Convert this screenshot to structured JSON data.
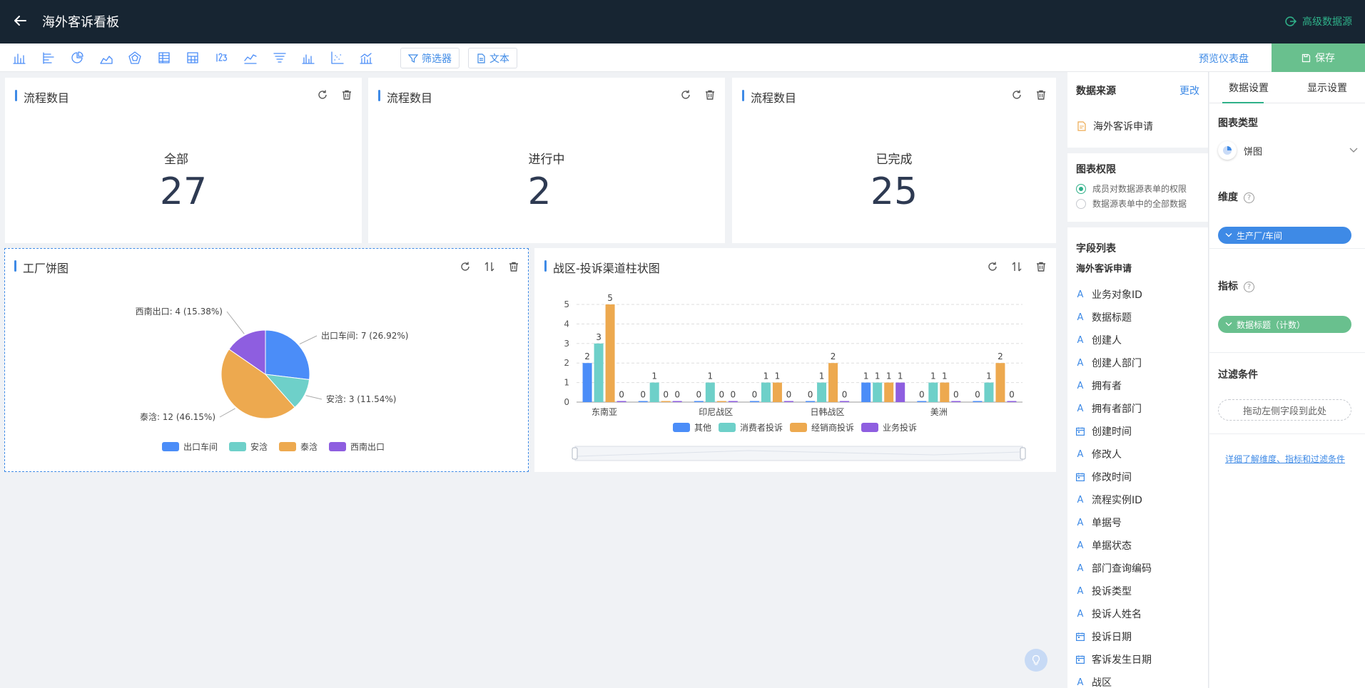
{
  "header": {
    "title": "海外客诉看板",
    "advanced_datasource": "高级数据源"
  },
  "toolbar": {
    "chart_icons": [
      "bar-chart-icon",
      "horizontal-bar-icon",
      "pie-chart-icon",
      "area-chart-icon",
      "radar-chart-icon",
      "list-table-icon",
      "cross-table-icon",
      "number-card-icon",
      "line-chart-icon",
      "funnel-chart-icon",
      "column-chart-icon",
      "scatter-chart-icon",
      "combo-chart-icon"
    ],
    "filter_label": "筛选器",
    "text_label": "文本",
    "preview_label": "预览仪表盘",
    "save_label": "保存"
  },
  "kpis": [
    {
      "title": "流程数目",
      "label": "全部",
      "value": "27"
    },
    {
      "title": "流程数目",
      "label": "进行中",
      "value": "2"
    },
    {
      "title": "流程数目",
      "label": "已完成",
      "value": "25"
    }
  ],
  "pie_card": {
    "title": "工厂饼图"
  },
  "bar_card": {
    "title": "战区-投诉渠道柱状图"
  },
  "colors": {
    "blue": "#4b8df8",
    "teal": "#6ed0c9",
    "orange": "#eda94f",
    "purple": "#8e5ee0",
    "accent": "#3e8ae6",
    "green": "#2fb089"
  },
  "chart_data": [
    {
      "type": "pie",
      "title": "工厂饼图",
      "slices": [
        {
          "name": "出口车间",
          "value": 7,
          "label": "出口车间: 7 (26.92%)"
        },
        {
          "name": "安浛",
          "value": 3,
          "label": "安浛: 3 (11.54%)"
        },
        {
          "name": "泰浛",
          "value": 12,
          "label": "泰浛: 12 (46.15%)"
        },
        {
          "name": "西南出口",
          "value": 4,
          "label": "西南出口: 4 (15.38%)"
        }
      ],
      "legend": [
        "出口车间",
        "安浛",
        "泰浛",
        "西南出口"
      ]
    },
    {
      "type": "bar",
      "title": "战区-投诉渠道柱状图",
      "categories": [
        "东南亚",
        "",
        "印尼战区",
        "",
        "日韩战区",
        "",
        "美洲",
        ""
      ],
      "series": [
        {
          "name": "其他",
          "values": [
            2,
            0,
            0,
            0,
            0,
            1,
            0,
            0
          ]
        },
        {
          "name": "消费者投诉",
          "values": [
            3,
            1,
            1,
            1,
            1,
            1,
            1,
            1
          ]
        },
        {
          "name": "经销商投诉",
          "values": [
            5,
            0,
            0,
            1,
            2,
            1,
            1,
            2
          ]
        },
        {
          "name": "业务投诉",
          "values": [
            0,
            0,
            0,
            0,
            0,
            1,
            0,
            0
          ]
        }
      ],
      "yticks": [
        "0",
        "1",
        "2",
        "3",
        "4",
        "5"
      ],
      "ylim": [
        0,
        5
      ]
    }
  ],
  "datasource": {
    "heading": "数据来源",
    "change_label": "更改",
    "source_name": "海外客诉申请",
    "perm_heading": "图表权限",
    "perm_options": [
      "成员对数据源表单的权限",
      "数据源表单中的全部数据"
    ],
    "fields_heading": "字段列表",
    "form_name": "海外客诉申请",
    "fields": [
      {
        "label": "业务对象ID",
        "kind": "text"
      },
      {
        "label": "数据标题",
        "kind": "text"
      },
      {
        "label": "创建人",
        "kind": "text"
      },
      {
        "label": "创建人部门",
        "kind": "text"
      },
      {
        "label": "拥有者",
        "kind": "text"
      },
      {
        "label": "拥有者部门",
        "kind": "text"
      },
      {
        "label": "创建时间",
        "kind": "date"
      },
      {
        "label": "修改人",
        "kind": "text"
      },
      {
        "label": "修改时间",
        "kind": "date"
      },
      {
        "label": "流程实例ID",
        "kind": "text"
      },
      {
        "label": "单据号",
        "kind": "text"
      },
      {
        "label": "单据状态",
        "kind": "text"
      },
      {
        "label": "部门查询编码",
        "kind": "text"
      },
      {
        "label": "投诉类型",
        "kind": "text"
      },
      {
        "label": "投诉人姓名",
        "kind": "text"
      },
      {
        "label": "投诉日期",
        "kind": "date"
      },
      {
        "label": "客诉发生日期",
        "kind": "date"
      },
      {
        "label": "战区",
        "kind": "text"
      }
    ]
  },
  "config": {
    "tab_data": "数据设置",
    "tab_display": "显示设置",
    "chart_type_heading": "图表类型",
    "chart_type_value": "饼图",
    "dimension_heading": "维度",
    "dimension_value": "生产厂/车间",
    "metric_heading": "指标",
    "metric_value": "数据标题（计数）",
    "filter_heading": "过滤条件",
    "filter_placeholder": "拖动左侧字段到此处",
    "learn_more": "详细了解维度、指标和过滤条件"
  }
}
